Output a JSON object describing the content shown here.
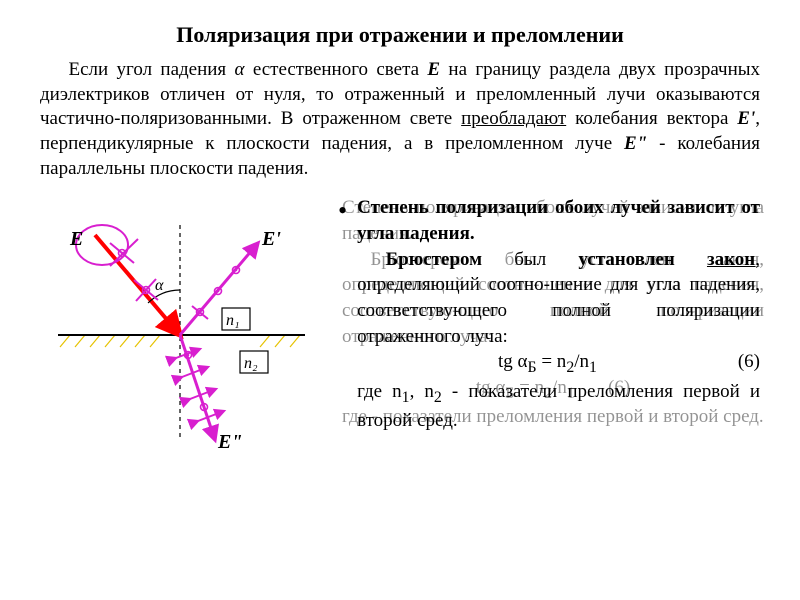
{
  "title": "Поляризация при отражении и преломлении",
  "intro_html": "Если угол падения <span class='i'>α</span> естественного света <span class='b i'>Е</span> на границу раздела двух прозрачных диэлектриков отличен от нуля, то отраженный и преломленный лучи оказываются частично-поляризованными. В отраженном свете <span class='u'>преобладают</span> колебания вектора <span class='b i'>Е'</span>, перпендикулярные к плоскости падения, а в преломленном луче <span class='b i'>Е\"</span> - колебания параллельны плоскости падения.",
  "right_text_html": "<span class='b'>Степень поляризации обоих лучей зависит от угла падения.</span><br><span class='ind'><span class='b'>Брюстером</span> был <span class='b'>установлен <span class='u'>закон</span></span>, определяющий соотно-шение для угла падения, соответствующего полной поляризации отраженного луча:</span>",
  "formula_center": "tg α<sub>Б</sub> = n<sub>2</sub>/n<sub>1</sub>",
  "formula_eqnum": "(6)",
  "right_text_2": "где n<sub>1</sub>, n<sub>2</sub> - показатели преломления первой и второй сред.",
  "ghost_text_html": "Степень поляризации обоих лучей зависит от угла падения.<br><span class='ind'>Брюстером был установлен <span class='u'>закон</span>, определяющий соотно-шение для угла падения, соответствую-щего полной поляризации отраженного луча:</span><br><span style='display:block;text-align:center'>tg α<sub>Б</sub> = n<sub>2</sub>/n<sub>1</sub>&nbsp;&nbsp;&nbsp;&nbsp;&nbsp;&nbsp;&nbsp;(6)</span>где - показатели преломления первой и второй сред.",
  "diagram": {
    "label_E": "E",
    "label_E1": "E'",
    "label_E2": "E\"",
    "label_n1": "n₁",
    "label_n2": "n₂",
    "label_alpha": "α",
    "colors": {
      "incident": "#ff0000",
      "magenta": "#d81fcf",
      "interface_line": "#000000",
      "hatch": "#e6c200",
      "normal": "#000000"
    }
  }
}
